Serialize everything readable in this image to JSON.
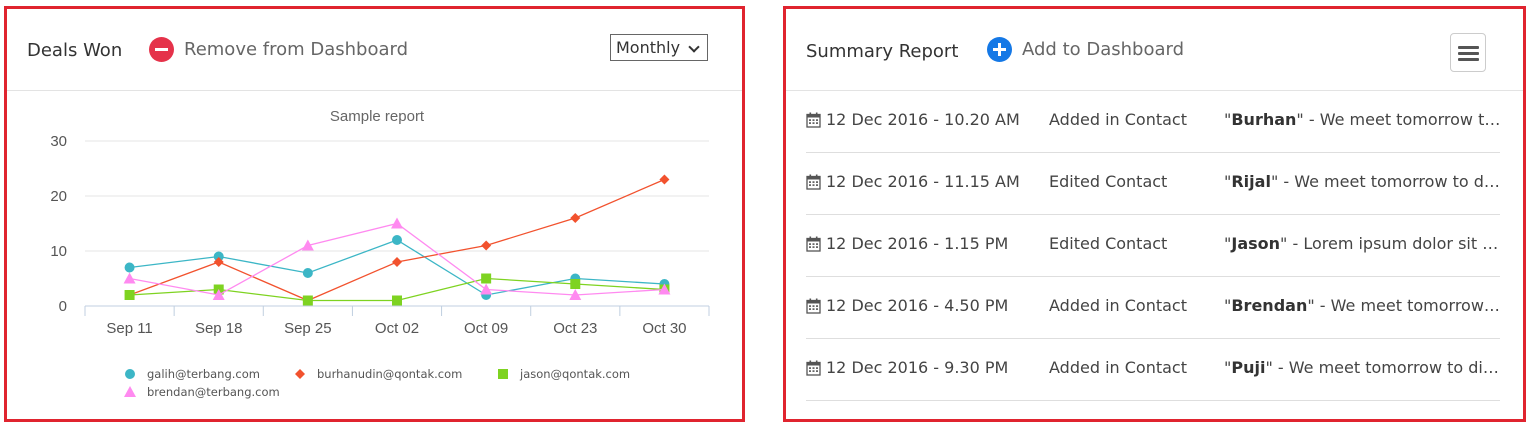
{
  "deals_won": {
    "title": "Deals Won",
    "action_label": "Remove from Dashboard",
    "period_select": {
      "value": "Monthly"
    }
  },
  "summary_report": {
    "title": "Summary Report",
    "action_label": "Add to Dashboard",
    "rows": [
      {
        "date": "12 Dec 2016 - 10.20 AM",
        "action": "Added in Contact",
        "name": "Burhan",
        "text": " - We meet tomorrow to discuss"
      },
      {
        "date": "12 Dec 2016 - 11.15 AM",
        "action": "Edited Contact",
        "name": "Rijal",
        "text": " - We meet tomorrow to discuss"
      },
      {
        "date": "12 Dec 2016 - 1.15 PM",
        "action": "Edited Contact",
        "name": "Jason",
        "text": " - Lorem ipsum dolor sit amet"
      },
      {
        "date": "12 Dec 2016 - 4.50 PM",
        "action": "Added in Contact",
        "name": "Brendan",
        "text": " - We meet tomorrow to discuss"
      },
      {
        "date": "12 Dec 2016 - 9.30 PM",
        "action": "Added in Contact",
        "name": "Puji",
        "text": " - We meet tomorrow to discuss"
      }
    ]
  },
  "chart_data": {
    "type": "line",
    "title": "Sample report",
    "categories": [
      "Sep 11",
      "Sep 18",
      "Sep 25",
      "Oct 02",
      "Oct 09",
      "Oct 23",
      "Oct 30"
    ],
    "ylim": [
      0,
      30
    ],
    "yticks": [
      0,
      10,
      20,
      30
    ],
    "grid": true,
    "legend_position": "bottom",
    "series": [
      {
        "name": "galih@terbang.com",
        "marker": "circle",
        "color": "#3cb6c6",
        "values": [
          7,
          9,
          6,
          12,
          2,
          5,
          4
        ]
      },
      {
        "name": "burhanudin@qontak.com",
        "marker": "diamond",
        "color": "#f2522e",
        "values": [
          2,
          8,
          1,
          8,
          11,
          16,
          23
        ]
      },
      {
        "name": "jason@qontak.com",
        "marker": "square",
        "color": "#7ed321",
        "values": [
          2,
          3,
          1,
          1,
          5,
          4,
          3
        ]
      },
      {
        "name": "brendan@terbang.com",
        "marker": "triangle",
        "color": "#ff8af0",
        "values": [
          5,
          2,
          11,
          15,
          3,
          2,
          3
        ]
      }
    ]
  }
}
